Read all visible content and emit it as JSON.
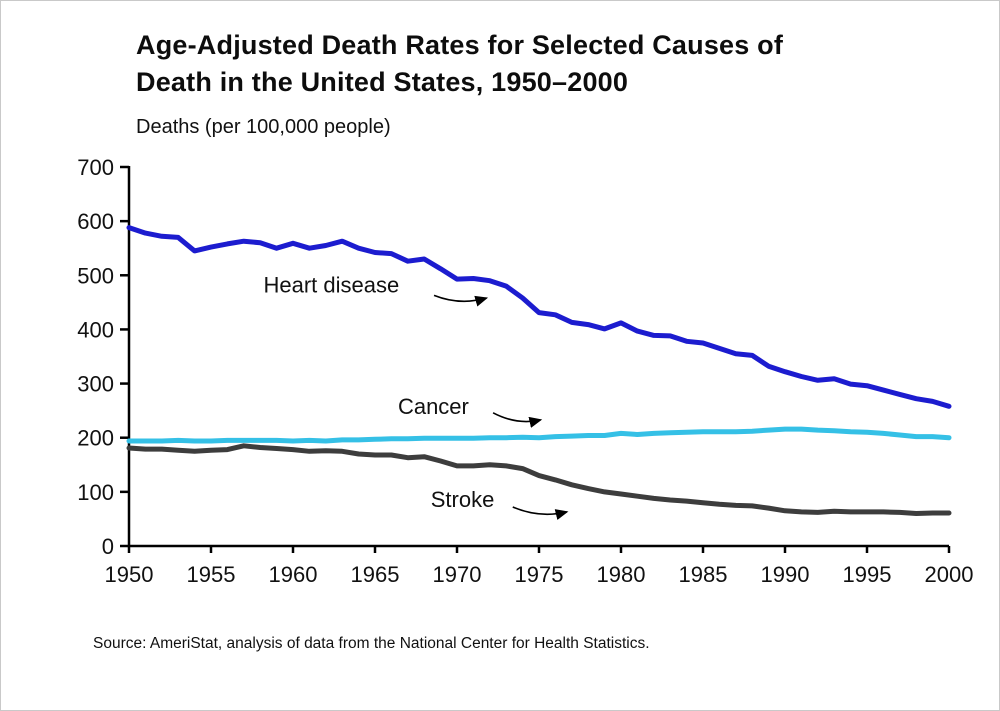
{
  "page": {
    "title_line1": "Age-Adjusted Death Rates for Selected Causes of",
    "title_line2": "Death in the United States, 1950–2000",
    "y_axis_title": "Deaths (per 100,000 people)",
    "source": "Source: AmeriStat, analysis of data from the National Center for Health Statistics."
  },
  "chart_data": {
    "type": "line",
    "title": "Age-Adjusted Death Rates for Selected Causes of Death in the United States, 1950–2000",
    "xlabel": "",
    "ylabel": "Deaths (per 100,000 people)",
    "xlim": [
      1950,
      2000
    ],
    "ylim": [
      0,
      700
    ],
    "grid": false,
    "legend_position": "inline-annotations",
    "xticks": [
      1950,
      1955,
      1960,
      1965,
      1970,
      1975,
      1980,
      1985,
      1990,
      1995,
      2000
    ],
    "yticks": [
      0,
      100,
      200,
      300,
      400,
      500,
      600,
      700
    ],
    "axis_color": "#000000",
    "x": [
      1950,
      1951,
      1952,
      1953,
      1954,
      1955,
      1956,
      1957,
      1958,
      1959,
      1960,
      1961,
      1962,
      1963,
      1964,
      1965,
      1966,
      1967,
      1968,
      1969,
      1970,
      1971,
      1972,
      1973,
      1974,
      1975,
      1976,
      1977,
      1978,
      1979,
      1980,
      1981,
      1982,
      1983,
      1984,
      1985,
      1986,
      1987,
      1988,
      1989,
      1990,
      1991,
      1992,
      1993,
      1994,
      1995,
      1996,
      1997,
      1998,
      1999,
      2000
    ],
    "series": [
      {
        "name": "Heart disease",
        "color": "#1c1ccf",
        "values": [
          588,
          578,
          572,
          570,
          545,
          552,
          558,
          563,
          560,
          550,
          559,
          550,
          555,
          563,
          550,
          542,
          540,
          526,
          530,
          512,
          493,
          494,
          490,
          480,
          458,
          431,
          427,
          413,
          409,
          401,
          412,
          397,
          389,
          388,
          378,
          375,
          365,
          355,
          352,
          332,
          322,
          313,
          306,
          309,
          299,
          296,
          288,
          280,
          272,
          267,
          258
        ]
      },
      {
        "name": "Stroke",
        "color": "#3d3d3d",
        "values": [
          181,
          179,
          179,
          177,
          175,
          177,
          178,
          185,
          182,
          180,
          178,
          175,
          176,
          175,
          170,
          168,
          168,
          163,
          165,
          157,
          148,
          148,
          150,
          148,
          143,
          130,
          122,
          113,
          106,
          100,
          96,
          92,
          88,
          85,
          83,
          80,
          77,
          75,
          74,
          70,
          65,
          63,
          62,
          64,
          63,
          63,
          63,
          62,
          60,
          61,
          61
        ]
      },
      {
        "name": "Cancer",
        "color": "#35c0e6",
        "values": [
          194,
          194,
          194,
          195,
          194,
          194,
          195,
          195,
          195,
          195,
          194,
          195,
          194,
          196,
          196,
          197,
          198,
          198,
          199,
          199,
          199,
          199,
          200,
          200,
          201,
          200,
          202,
          203,
          204,
          204,
          208,
          206,
          208,
          209,
          210,
          211,
          211,
          211,
          212,
          214,
          216,
          216,
          214,
          213,
          211,
          210,
          208,
          205,
          202,
          202,
          200
        ]
      }
    ],
    "annotations": [
      {
        "label": "Heart disease",
        "label_x": 1958.2,
        "label_y": 468,
        "arrow_from": [
          1968.6,
          463
        ],
        "arrow_to": [
          1971.8,
          458
        ]
      },
      {
        "label": "Cancer",
        "label_x": 1966.4,
        "label_y": 244,
        "arrow_from": [
          1972.2,
          246
        ],
        "arrow_to": [
          1975.1,
          233
        ]
      },
      {
        "label": "Stroke",
        "label_x": 1968.4,
        "label_y": 72,
        "arrow_from": [
          1973.4,
          72
        ],
        "arrow_to": [
          1976.7,
          63
        ]
      }
    ]
  }
}
